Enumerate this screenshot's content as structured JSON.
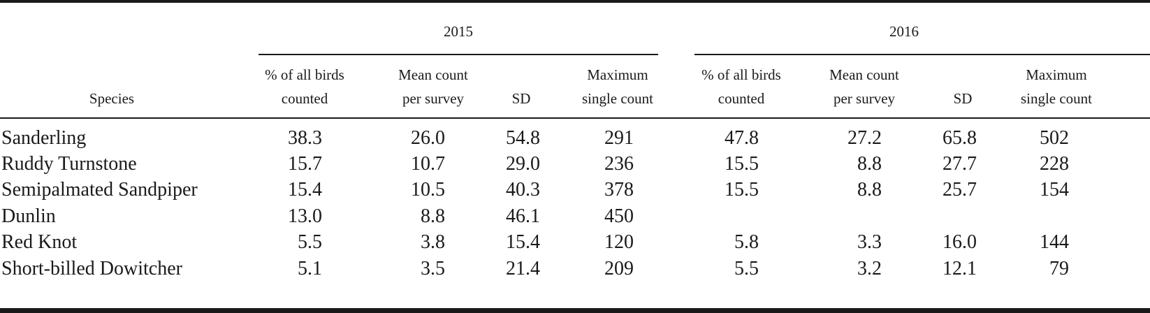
{
  "table": {
    "species_header": "Species",
    "groups": [
      {
        "year": "2015",
        "columns": [
          {
            "line1": "% of all birds",
            "line2": "counted"
          },
          {
            "line1": "Mean count",
            "line2": "per survey"
          },
          {
            "line1": "SD",
            "line2": ""
          },
          {
            "line1": "Maximum",
            "line2": "single count"
          }
        ]
      },
      {
        "year": "2016",
        "columns": [
          {
            "line1": "% of all birds",
            "line2": "counted"
          },
          {
            "line1": "Mean count",
            "line2": "per survey"
          },
          {
            "line1": "SD",
            "line2": ""
          },
          {
            "line1": "Maximum",
            "line2": "single count"
          }
        ]
      }
    ],
    "rows": [
      {
        "species": "Sanderling",
        "y2015": [
          "38.3",
          "26.0",
          "54.8",
          "291"
        ],
        "y2016": [
          "47.8",
          "27.2",
          "65.8",
          "502"
        ]
      },
      {
        "species": "Ruddy Turnstone",
        "y2015": [
          "15.7",
          "10.7",
          "29.0",
          "236"
        ],
        "y2016": [
          "15.5",
          "8.8",
          "27.7",
          "228"
        ]
      },
      {
        "species": "Semipalmated Sandpiper",
        "y2015": [
          "15.4",
          "10.5",
          "40.3",
          "378"
        ],
        "y2016": [
          "15.5",
          "8.8",
          "25.7",
          "154"
        ]
      },
      {
        "species": "Dunlin",
        "y2015": [
          "13.0",
          "8.8",
          "46.1",
          "450"
        ],
        "y2016": [
          "",
          "",
          "",
          ""
        ]
      },
      {
        "species": "Red Knot",
        "y2015": [
          "5.5",
          "3.8",
          "15.4",
          "120"
        ],
        "y2016": [
          "5.8",
          "3.3",
          "16.0",
          "144"
        ]
      },
      {
        "species": "Short-billed Dowitcher",
        "y2015": [
          "5.1",
          "3.5",
          "21.4",
          "209"
        ],
        "y2016": [
          "5.5",
          "3.2",
          "12.1",
          "79"
        ]
      }
    ]
  }
}
